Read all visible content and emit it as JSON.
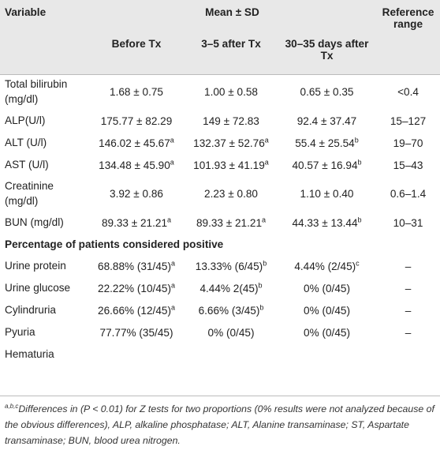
{
  "header": {
    "variable": "Variable",
    "mean_sd": "Mean ± SD",
    "reference_range": "Reference range",
    "before_tx": "Before Tx",
    "after_3_5": "3–5 after Tx",
    "after_30_35": "30–35 days after Tx"
  },
  "rows": [
    {
      "variable": "Total bilirubin (mg/dl)",
      "before": "1.68 ± 0.75",
      "before_sup": "",
      "mid": "1.00 ± 0.58",
      "mid_sup": "",
      "late": "0.65 ± 0.35",
      "late_sup": "",
      "ref": "<0.4"
    },
    {
      "variable": "ALP(U/l)",
      "before": "175.77 ± 82.29",
      "before_sup": "",
      "mid": "149 ± 72.83",
      "mid_sup": "",
      "late": "92.4 ± 37.47",
      "late_sup": "",
      "ref": "15–127"
    },
    {
      "variable": "ALT (U/l)",
      "before": "146.02 ± 45.67",
      "before_sup": "a",
      "mid": "132.37 ± 52.76",
      "mid_sup": "a",
      "late": "55.4 ± 25.54",
      "late_sup": "b",
      "ref": "19–70"
    },
    {
      "variable": "AST (U/l)",
      "before": "134.48 ± 45.90",
      "before_sup": "a",
      "mid": "101.93 ± 41.19",
      "mid_sup": "a",
      "late": "40.57 ± 16.94",
      "late_sup": "b",
      "ref": "15–43"
    },
    {
      "variable": "Creatinine (mg/dl)",
      "before": "3.92 ± 0.86",
      "before_sup": "",
      "mid": "2.23 ± 0.80",
      "mid_sup": "",
      "late": "1.10 ± 0.40",
      "late_sup": "",
      "ref": "0.6–1.4"
    },
    {
      "variable": "BUN (mg/dl)",
      "before": "89.33 ± 21.21",
      "before_sup": "a",
      "mid": "89.33 ± 21.21",
      "mid_sup": "a",
      "late": "44.33 ± 13.44",
      "late_sup": "b",
      "ref": "10–31"
    }
  ],
  "section_title": "Percentage of patients considered positive",
  "pct_rows": [
    {
      "variable": "Urine protein",
      "before": "68.88% (31/45)",
      "before_sup": "a",
      "mid": "13.33% (6/45)",
      "mid_sup": "b",
      "late": "4.44% (2/45)",
      "late_sup": "c",
      "ref": "–"
    },
    {
      "variable": "Urine glucose",
      "before": "22.22% (10/45)",
      "before_sup": "a",
      "mid": "4.44% 2(45)",
      "mid_sup": "b",
      "late": "0% (0/45)",
      "late_sup": "",
      "ref": "–"
    },
    {
      "variable": "Cylindruria",
      "before": "26.66% (12/45)",
      "before_sup": "a",
      "mid": "6.66% (3/45)",
      "mid_sup": "b",
      "late": "0% (0/45)",
      "late_sup": "",
      "ref": "–"
    },
    {
      "variable": "Pyuria",
      "before": "77.77% (35/45)",
      "before_sup": "",
      "mid": "0% (0/45)",
      "mid_sup": "",
      "late": "0% (0/45)",
      "late_sup": "",
      "ref": "–"
    },
    {
      "variable": "Hematuria",
      "before": "",
      "before_sup": "",
      "mid": "",
      "mid_sup": "",
      "late": "",
      "late_sup": "",
      "ref": ""
    }
  ],
  "footnote": {
    "sup": "a,b,c",
    "text": "Differences in (P < 0.01) for Z tests for two proportions (0% results were not analyzed because of the obvious differences), ALP, alkaline phosphatase; ALT, Alanine transaminase; ST, Aspartate transaminase; BUN, blood urea nitrogen."
  }
}
